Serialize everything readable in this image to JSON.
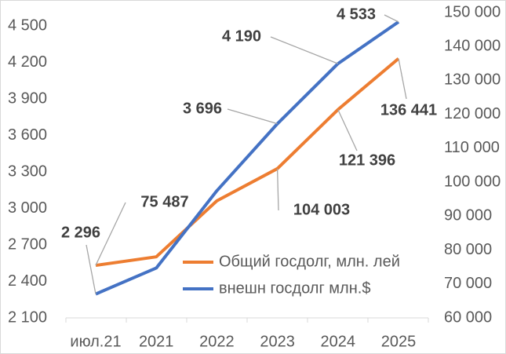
{
  "chart_data": {
    "type": "line",
    "categories": [
      "июл.21",
      "2021",
      "2022",
      "2023",
      "2024",
      "2025"
    ],
    "series": [
      {
        "name": "Общий госдолг, млн. лей",
        "color": "#ed7d31",
        "axis": "y2",
        "values": [
          75487,
          78000,
          94500,
          104003,
          121396,
          136441
        ],
        "value_labels": [
          "75 487",
          null,
          null,
          "104 003",
          "121 396",
          "136 441"
        ]
      },
      {
        "name": "внешн госдолг млн.$",
        "color": "#4472c4",
        "values": [
          2296,
          2510,
          3145,
          3696,
          4190,
          4533
        ],
        "value_labels": [
          "2 296",
          null,
          null,
          "3 696",
          "4 190",
          "4 533"
        ]
      }
    ],
    "ylim": [
      2100,
      4610
    ],
    "yticks": [
      {
        "value": 2100,
        "label": "2 100"
      },
      {
        "value": 2400,
        "label": "2 400"
      },
      {
        "value": 2700,
        "label": "2 700"
      },
      {
        "value": 3000,
        "label": "3 000"
      },
      {
        "value": 3300,
        "label": "3 300"
      },
      {
        "value": 3600,
        "label": "3 600"
      },
      {
        "value": 3900,
        "label": "3 900"
      },
      {
        "value": 4200,
        "label": "4 200"
      },
      {
        "value": 4500,
        "label": "4 500"
      }
    ],
    "y2lim": [
      60000,
      150000
    ],
    "y2ticks": [
      {
        "value": 60000,
        "label": "60 000"
      },
      {
        "value": 70000,
        "label": "70 000"
      },
      {
        "value": 80000,
        "label": "80 000"
      },
      {
        "value": 90000,
        "label": "90 000"
      },
      {
        "value": 100000,
        "label": "100 000"
      },
      {
        "value": 110000,
        "label": "110 000"
      },
      {
        "value": 120000,
        "label": "120 000"
      },
      {
        "value": 130000,
        "label": "130 000"
      },
      {
        "value": 140000,
        "label": "140 000"
      },
      {
        "value": 150000,
        "label": "150 000"
      }
    ],
    "grid": false
  }
}
